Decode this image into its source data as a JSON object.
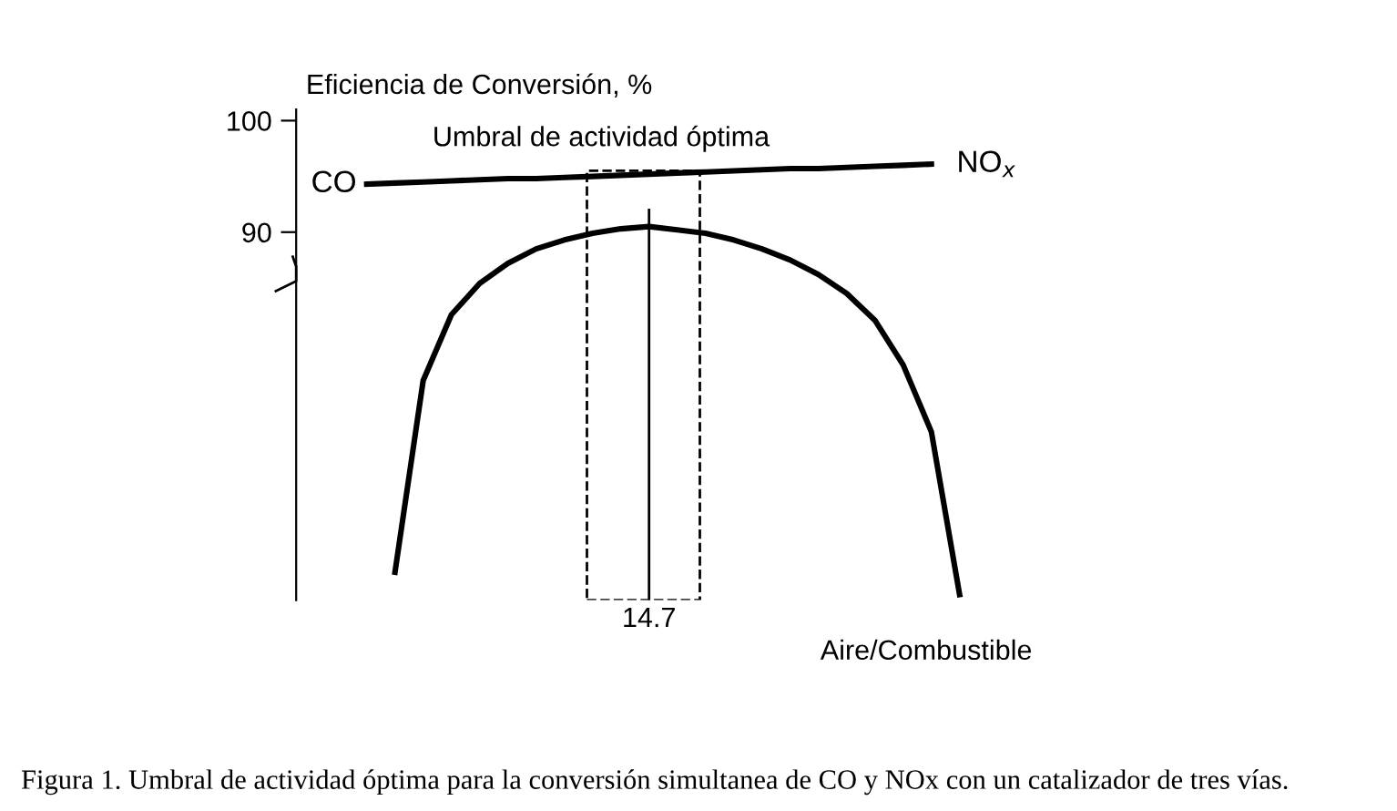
{
  "chart_data": {
    "type": "line",
    "ylabel": "Eficiencia de Conversión, %",
    "xlabel": "Aire/Combustible",
    "categories": [
      null,
      null,
      null,
      null,
      null,
      null,
      null,
      null,
      null,
      null,
      null,
      null,
      null,
      null,
      null,
      null,
      null,
      null,
      null,
      null,
      null,
      null,
      null,
      null
    ],
    "series": [
      {
        "color": "#000000",
        "values": [
          null,
          null,
          94.3,
          94.4,
          94.5,
          94.6,
          94.7,
          94.8,
          94.8,
          94.9,
          95.0,
          95.1,
          95.2,
          95.3,
          95.4,
          95.5,
          95.6,
          95.7,
          95.7,
          95.8,
          95.9,
          96.0,
          96.1,
          null
        ]
      },
      {
        "color": "#000000",
        "values": [
          null,
          null,
          null,
          59.5,
          76.7,
          82.6,
          85.4,
          87.2,
          88.5,
          89.3,
          89.9,
          90.3,
          90.5,
          90.2,
          89.9,
          89.3,
          88.5,
          87.5,
          86.2,
          84.5,
          82.1,
          78.1,
          72.1,
          57.5
        ]
      }
    ],
    "ylim": [
      57,
      101
    ],
    "yticks": [
      90,
      100
    ],
    "ref_lines": [
      {
        "axis": "x",
        "label": "14.7",
        "color": "#000000"
      }
    ],
    "annotations": [
      "CO",
      "NO$_{x}$",
      "Umbral de actividad óptima",
      "Figura 1. Umbral de actividad óptima para la conversión simultanea de CO y NOx con un catalizador de tres vías."
    ],
    "grid": false,
    "marker": "none",
    "line_style": "solid"
  }
}
